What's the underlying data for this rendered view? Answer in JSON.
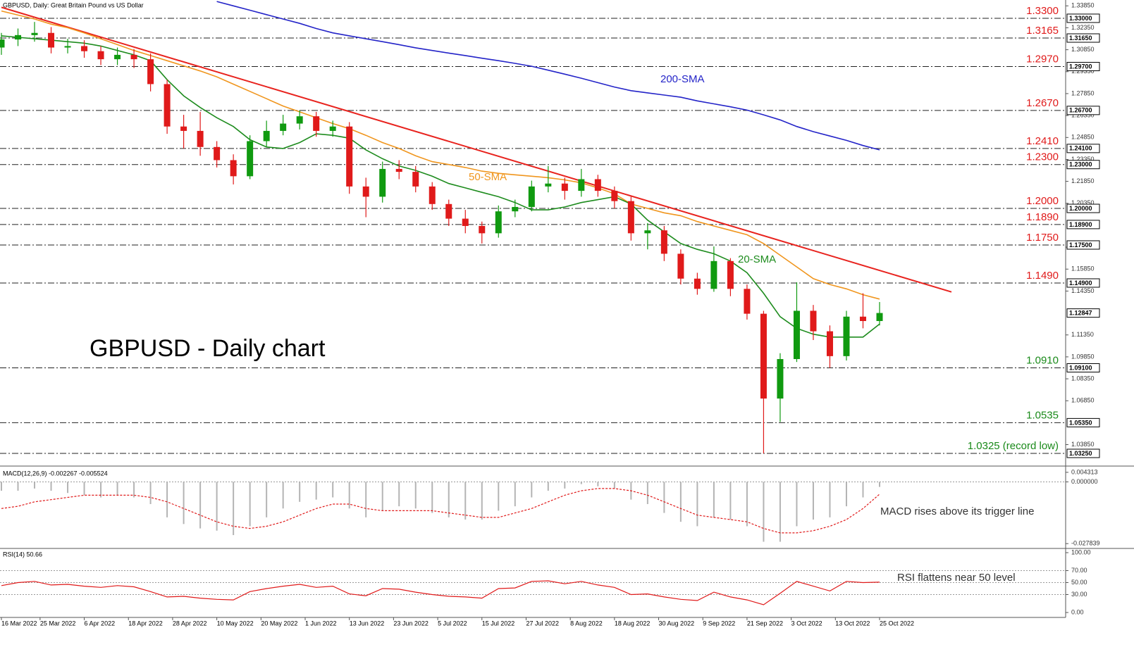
{
  "chart_data": [
    {
      "type": "candlestick",
      "title": "GBPUSD, Daily:  Great Britain Pound vs US Dollar",
      "heading": "GBPUSD - Daily chart",
      "x": [
        "16 Mar 2022",
        "21 Mar 2022",
        "24 Mar 2022",
        "29 Mar 2022",
        "1 Apr 2022",
        "6 Apr 2022",
        "11 Apr 2022",
        "14 Apr 2022",
        "19 Apr 2022",
        "22 Apr 2022",
        "27 Apr 2022",
        "2 May 2022",
        "5 May 2022",
        "10 May 2022",
        "13 May 2022",
        "18 May 2022",
        "23 May 2022",
        "26 May 2022",
        "31 May 2022",
        "3 Jun 2022",
        "8 Jun 2022",
        "13 Jun 2022",
        "16 Jun 2022",
        "21 Jun 2022",
        "24 Jun 2022",
        "29 Jun 2022",
        "4 Jul 2022",
        "7 Jul 2022",
        "12 Jul 2022",
        "15 Jul 2022",
        "20 Jul 2022",
        "25 Jul 2022",
        "28 Jul 2022",
        "2 Aug 2022",
        "5 Aug 2022",
        "10 Aug 2022",
        "15 Aug 2022",
        "18 Aug 2022",
        "23 Aug 2022",
        "26 Aug 2022",
        "31 Aug 2022",
        "5 Sep 2022",
        "8 Sep 2022",
        "13 Sep 2022",
        "16 Sep 2022",
        "21 Sep 2022",
        "26 Sep 2022",
        "29 Sep 2022",
        "4 Oct 2022",
        "7 Oct 2022",
        "12 Oct 2022",
        "17 Oct 2022",
        "20 Oct 2022",
        "25 Oct 2022"
      ],
      "open": [
        1.31,
        1.3155,
        1.3185,
        1.32,
        1.31,
        1.311,
        1.3075,
        1.302,
        1.305,
        1.302,
        1.285,
        1.256,
        1.253,
        1.242,
        1.233,
        1.222,
        1.246,
        1.253,
        1.258,
        1.263,
        1.253,
        1.256,
        1.215,
        1.208,
        1.227,
        1.225,
        1.215,
        1.203,
        1.193,
        1.188,
        1.183,
        1.198,
        1.201,
        1.215,
        1.217,
        1.212,
        1.22,
        1.212,
        1.205,
        1.183,
        1.185,
        1.169,
        1.152,
        1.145,
        1.164,
        1.145,
        1.128,
        1.07,
        1.097,
        1.13,
        1.116,
        1.099,
        1.126,
        1.123
      ],
      "high": [
        1.32,
        1.323,
        1.3275,
        1.324,
        1.316,
        1.315,
        1.311,
        1.31,
        1.309,
        1.306,
        1.288,
        1.264,
        1.266,
        1.246,
        1.237,
        1.25,
        1.26,
        1.264,
        1.267,
        1.266,
        1.26,
        1.259,
        1.221,
        1.232,
        1.233,
        1.229,
        1.218,
        1.206,
        1.199,
        1.191,
        1.202,
        1.206,
        1.219,
        1.229,
        1.221,
        1.227,
        1.223,
        1.215,
        1.208,
        1.19,
        1.188,
        1.172,
        1.156,
        1.174,
        1.166,
        1.148,
        1.13,
        1.101,
        1.1495,
        1.134,
        1.12,
        1.13,
        1.142,
        1.136
      ],
      "low": [
        1.305,
        1.311,
        1.314,
        1.306,
        1.306,
        1.303,
        1.298,
        1.298,
        1.296,
        1.28,
        1.251,
        1.241,
        1.236,
        1.228,
        1.2164,
        1.22,
        1.242,
        1.25,
        1.254,
        1.249,
        1.249,
        1.21,
        1.194,
        1.204,
        1.22,
        1.211,
        1.199,
        1.188,
        1.183,
        1.176,
        1.18,
        1.194,
        1.198,
        1.211,
        1.206,
        1.208,
        1.208,
        1.2,
        1.178,
        1.172,
        1.164,
        1.148,
        1.141,
        1.143,
        1.14,
        1.124,
        1.0325,
        1.054,
        1.095,
        1.11,
        1.091,
        1.096,
        1.118,
        1.12
      ],
      "close": [
        1.3155,
        1.3185,
        1.32,
        1.31,
        1.311,
        1.3075,
        1.302,
        1.305,
        1.302,
        1.285,
        1.256,
        1.253,
        1.242,
        1.233,
        1.222,
        1.246,
        1.253,
        1.258,
        1.263,
        1.253,
        1.256,
        1.215,
        1.208,
        1.227,
        1.225,
        1.215,
        1.203,
        1.193,
        1.188,
        1.183,
        1.198,
        1.201,
        1.215,
        1.217,
        1.212,
        1.22,
        1.212,
        1.205,
        1.183,
        1.185,
        1.169,
        1.152,
        1.145,
        1.164,
        1.145,
        1.128,
        1.07,
        1.097,
        1.13,
        1.116,
        1.099,
        1.126,
        1.123,
        1.1285
      ],
      "up_color": "#109a10",
      "down_color": "#e01a1a",
      "ylim": [
        1.0248,
        1.3425
      ],
      "yticks": [
        {
          "value": 1.3385,
          "label": "1.33850"
        },
        {
          "value": 1.3235,
          "label": "1.32350"
        },
        {
          "value": 1.3085,
          "label": "1.30850"
        },
        {
          "value": 1.2935,
          "label": "1.29350"
        },
        {
          "value": 1.2785,
          "label": "1.27850"
        },
        {
          "value": 1.2635,
          "label": "1.26350"
        },
        {
          "value": 1.2485,
          "label": "1.24850"
        },
        {
          "value": 1.2335,
          "label": "1.23350"
        },
        {
          "value": 1.2185,
          "label": "1.21850"
        },
        {
          "value": 1.2035,
          "label": "1.20350"
        },
        {
          "value": 1.1735,
          "label": "1.17350"
        },
        {
          "value": 1.1585,
          "label": "1.15850"
        },
        {
          "value": 1.1435,
          "label": "1.14350"
        },
        {
          "value": 1.1135,
          "label": "1.11350"
        },
        {
          "value": 1.0985,
          "label": "1.09850"
        },
        {
          "value": 1.0835,
          "label": "1.08350"
        },
        {
          "value": 1.0685,
          "label": "1.06850"
        },
        {
          "value": 1.0385,
          "label": "1.03850"
        }
      ],
      "xticks": [
        "16 Mar 2022",
        "25 Mar 2022",
        "6 Apr 2022",
        "18 Apr 2022",
        "28 Apr 2022",
        "10 May 2022",
        "20 May 2022",
        "1 Jun 2022",
        "13 Jun 2022",
        "23 Jun 2022",
        "5 Jul 2022",
        "15 Jul 2022",
        "27 Jul 2022",
        "8 Aug 2022",
        "18 Aug 2022",
        "30 Aug 2022",
        "9 Sep 2022",
        "21 Sep 2022",
        "3 Oct 2022",
        "13 Oct 2022",
        "25 Oct 2022"
      ],
      "last_price": {
        "value": 1.12847,
        "label": "1.12847"
      },
      "levels": [
        {
          "value": 1.33,
          "label": "1.3300",
          "axis_label": "1.33000",
          "color": "#e01a1a"
        },
        {
          "value": 1.3165,
          "label": "1.3165",
          "axis_label": "1.31650",
          "color": "#e01a1a"
        },
        {
          "value": 1.297,
          "label": "1.2970",
          "axis_label": "1.29700",
          "color": "#e01a1a"
        },
        {
          "value": 1.267,
          "label": "1.2670",
          "axis_label": "1.26700",
          "color": "#e01a1a"
        },
        {
          "value": 1.241,
          "label": "1.2410",
          "axis_label": "1.24100",
          "color": "#e01a1a"
        },
        {
          "value": 1.23,
          "label": "1.2300",
          "axis_label": "1.23000",
          "color": "#e01a1a"
        },
        {
          "value": 1.2,
          "label": "1.2000",
          "axis_label": "1.20000",
          "color": "#e01a1a"
        },
        {
          "value": 1.189,
          "label": "1.1890",
          "axis_label": "1.18900",
          "color": "#e01a1a"
        },
        {
          "value": 1.175,
          "label": "1.1750",
          "axis_label": "1.17500",
          "color": "#e01a1a"
        },
        {
          "value": 1.149,
          "label": "1.1490",
          "axis_label": "1.14900",
          "color": "#e01a1a"
        },
        {
          "value": 1.091,
          "label": "1.0910",
          "axis_label": "1.09100",
          "color": "#1a8a1a"
        },
        {
          "value": 1.0535,
          "label": "1.0535",
          "axis_label": "1.05350",
          "color": "#1a8a1a"
        },
        {
          "value": 1.0325,
          "label": "1.0325 (record low)",
          "axis_label": "1.03250",
          "color": "#1a8a1a"
        }
      ],
      "series": [
        {
          "name": "200-SMA",
          "color": "#2424c8",
          "values": [
            null,
            null,
            null,
            null,
            null,
            null,
            null,
            null,
            null,
            null,
            null,
            null,
            null,
            1.3415,
            1.3385,
            1.3355,
            1.3325,
            1.3295,
            1.3265,
            1.323,
            1.32,
            1.318,
            1.316,
            1.314,
            1.312,
            1.3098,
            1.308,
            1.3062,
            1.3045,
            1.3027,
            1.301,
            1.2992,
            1.2972,
            1.2945,
            1.2918,
            1.289,
            1.286,
            1.283,
            1.2805,
            1.279,
            1.2775,
            1.276,
            1.2735,
            1.2715,
            1.2695,
            1.2672,
            1.264,
            1.2605,
            1.256,
            1.2525,
            1.2495,
            1.2465,
            1.243,
            1.24
          ]
        },
        {
          "name": "50-SMA",
          "color": "#f0961e",
          "values": [
            1.335,
            1.3322,
            1.3295,
            1.326,
            1.3236,
            1.32,
            1.316,
            1.312,
            1.308,
            1.3045,
            1.301,
            1.2975,
            1.294,
            1.29,
            1.285,
            1.28,
            1.275,
            1.27,
            1.266,
            1.262,
            1.258,
            1.2545,
            1.25,
            1.245,
            1.241,
            1.236,
            1.232,
            1.23,
            1.228,
            1.2255,
            1.224,
            1.223,
            1.222,
            1.221,
            1.2195,
            1.2175,
            1.214,
            1.21,
            1.203,
            1.2,
            1.197,
            1.195,
            1.191,
            1.188,
            1.185,
            1.182,
            1.176,
            1.168,
            1.16,
            1.152,
            1.148,
            1.145,
            1.141,
            1.138
          ]
        },
        {
          "name": "20-SMA",
          "color": "#1e8c1e",
          "values": [
            1.318,
            1.317,
            1.316,
            1.315,
            1.314,
            1.313,
            1.311,
            1.308,
            1.305,
            1.301,
            1.288,
            1.277,
            1.269,
            1.262,
            1.256,
            1.247,
            1.242,
            1.241,
            1.245,
            1.251,
            1.25,
            1.248,
            1.24,
            1.234,
            1.229,
            1.226,
            1.222,
            1.217,
            1.214,
            1.211,
            1.208,
            1.204,
            1.199,
            1.199,
            1.201,
            1.204,
            1.206,
            1.208,
            1.203,
            1.192,
            1.184,
            1.176,
            1.172,
            1.169,
            1.164,
            1.156,
            1.142,
            1.126,
            1.118,
            1.114,
            1.112,
            1.112,
            1.112,
            1.121
          ]
        }
      ],
      "trendline": {
        "color": "#e8231e",
        "x": [
          "16 Mar 2022",
          "25 Oct 2022"
        ],
        "values": [
          1.3375,
          1.1576
        ]
      }
    },
    {
      "type": "macd",
      "title": "MACD(12,26,9) -0.002267 -0.005524",
      "annotation": "MACD rises above its trigger line",
      "ylim": [
        -0.0297,
        0.0065
      ],
      "yticks": [
        0.004313,
        {
          "value": 0,
          "label": "0.000000"
        },
        -0.027839
      ],
      "histogram": {
        "color": "#b4b4b4",
        "values": [
          -0.004,
          -0.004,
          -0.003,
          -0.004,
          -0.005,
          -0.006,
          -0.007,
          -0.006,
          -0.007,
          -0.01,
          -0.016,
          -0.019,
          -0.021,
          -0.022,
          -0.024,
          -0.02,
          -0.016,
          -0.012,
          -0.009,
          -0.008,
          -0.007,
          -0.012,
          -0.016,
          -0.013,
          -0.011,
          -0.012,
          -0.014,
          -0.016,
          -0.017,
          -0.017,
          -0.013,
          -0.011,
          -0.007,
          -0.004,
          -0.003,
          -0.001,
          -0.002,
          -0.003,
          -0.008,
          -0.01,
          -0.014,
          -0.018,
          -0.02,
          -0.016,
          -0.017,
          -0.02,
          -0.027,
          -0.027,
          -0.02,
          -0.017,
          -0.016,
          -0.011,
          -0.007,
          -0.002267
        ]
      },
      "signal": {
        "color": "#e01a1a",
        "values": [
          -0.012,
          -0.011,
          -0.009,
          -0.008,
          -0.007,
          -0.006,
          -0.006,
          -0.006,
          -0.006,
          -0.007,
          -0.009,
          -0.012,
          -0.015,
          -0.018,
          -0.02,
          -0.021,
          -0.02,
          -0.018,
          -0.015,
          -0.012,
          -0.01,
          -0.01,
          -0.012,
          -0.013,
          -0.013,
          -0.013,
          -0.013,
          -0.014,
          -0.015,
          -0.016,
          -0.016,
          -0.014,
          -0.012,
          -0.009,
          -0.006,
          -0.004,
          -0.003,
          -0.003,
          -0.004,
          -0.006,
          -0.009,
          -0.012,
          -0.015,
          -0.016,
          -0.017,
          -0.018,
          -0.021,
          -0.023,
          -0.023,
          -0.022,
          -0.02,
          -0.017,
          -0.012,
          -0.005524
        ]
      }
    },
    {
      "type": "line",
      "title": "RSI(14) 50.66",
      "annotation": "RSI flattens near 50 level",
      "color": "#e01a1a",
      "ylim": [
        0,
        100
      ],
      "yticks": [
        {
          "value": 100,
          "label": "100.00"
        },
        {
          "value": 70,
          "label": "70.00"
        },
        {
          "value": 50,
          "label": "50.00"
        },
        {
          "value": 30,
          "label": "30.00"
        },
        {
          "value": 0,
          "label": "0.00"
        }
      ],
      "values": [
        45,
        50,
        52,
        46,
        47,
        44,
        42,
        45,
        43,
        35,
        26,
        27,
        24,
        22,
        21,
        35,
        40,
        44,
        47,
        42,
        44,
        31,
        28,
        40,
        39,
        34,
        30,
        27,
        26,
        24,
        40,
        41,
        52,
        53,
        48,
        52,
        46,
        42,
        30,
        31,
        26,
        22,
        20,
        34,
        26,
        21,
        13,
        32,
        52,
        44,
        36,
        52,
        50,
        50.66
      ]
    }
  ]
}
